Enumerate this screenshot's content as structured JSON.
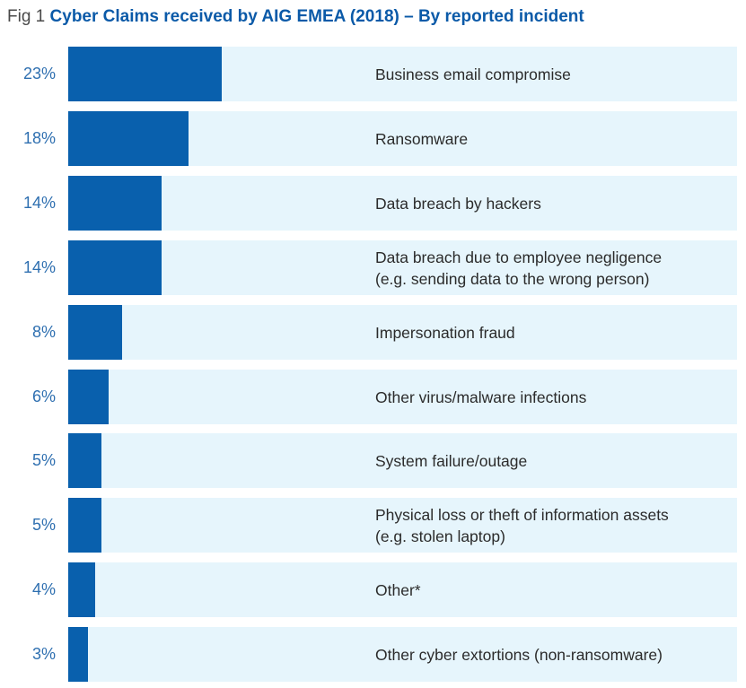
{
  "title": {
    "prefix": "Fig 1",
    "main": "Cyber Claims received by AIG EMEA (2018)  – By reported incident"
  },
  "colors": {
    "bar": "#0960ad",
    "track": "#e6f5fc",
    "percent_text": "#2e6fb0",
    "title_accent": "#0b5aa8"
  },
  "chart_data": {
    "type": "bar",
    "orientation": "horizontal",
    "title": "Cyber Claims received by AIG EMEA (2018)  – By reported incident",
    "xlim": [
      0,
      100
    ],
    "grid": false,
    "categories": [
      "Business email compromise",
      "Ransomware",
      "Data breach by hackers",
      "Data breach due to employee negligence\n(e.g. sending data to the wrong person)",
      "Impersonation fraud",
      "Other virus/malware infections",
      "System failure/outage",
      "Physical loss or theft of information assets\n(e.g. stolen laptop)",
      "Other*",
      "Other cyber extortions (non-ransomware)"
    ],
    "values": [
      23,
      18,
      14,
      14,
      8,
      6,
      5,
      5,
      4,
      3
    ],
    "value_labels": [
      "23%",
      "18%",
      "14%",
      "14%",
      "8%",
      "6%",
      "5%",
      "5%",
      "4%",
      "3%"
    ]
  }
}
